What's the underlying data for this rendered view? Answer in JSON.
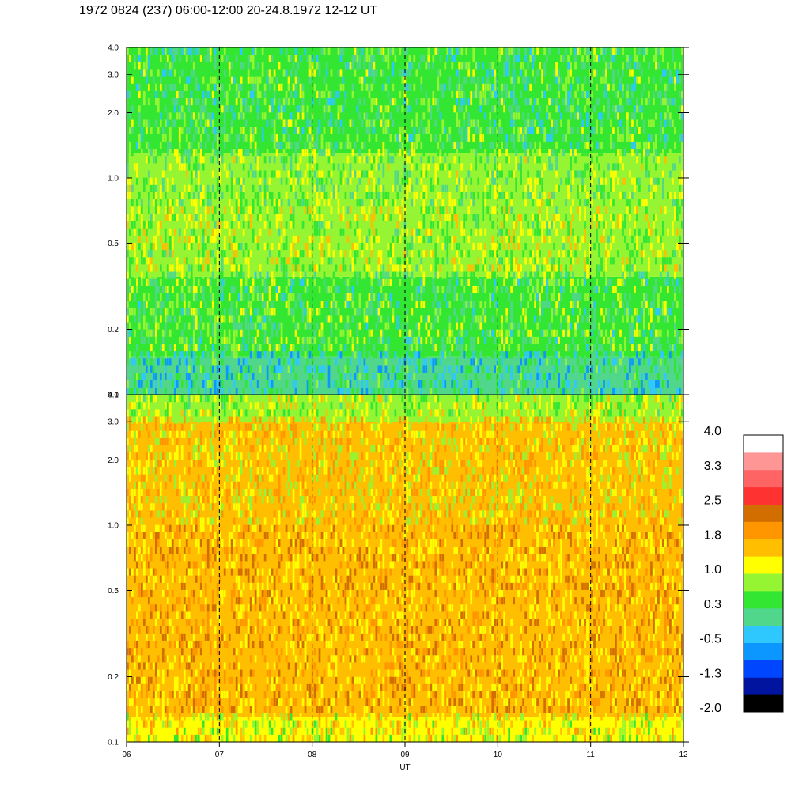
{
  "title": "1972 0824 (237) 06:00-12:00 20-24.8.1972  12-12 UT",
  "chart_data": {
    "type": "heatmap",
    "xlabel": "UT",
    "x_ticks": [
      "06",
      "07",
      "08",
      "09",
      "10",
      "11",
      "12"
    ],
    "x_range": [
      6,
      12
    ],
    "vertical_dashed_lines_at": [
      7,
      8,
      9,
      10,
      11
    ],
    "panels": [
      {
        "name": "",
        "y_scale": "log",
        "y_range": [
          0.1,
          4.0
        ],
        "y_ticks": [
          0.1,
          0.2,
          0.5,
          1.0,
          2.0,
          3.0,
          4.0
        ],
        "y_tick_labels": [
          "0.1",
          "0.2",
          "0.5",
          "1.0",
          "2.0",
          "3.0",
          "4.0"
        ],
        "dominant_level_description_by_band": [
          {
            "y_range": [
              0.1,
              0.15
            ],
            "level": 0.0
          },
          {
            "y_range": [
              0.15,
              0.35
            ],
            "level": 0.5
          },
          {
            "y_range": [
              0.35,
              0.7
            ],
            "level": 0.9
          },
          {
            "y_range": [
              0.7,
              1.3
            ],
            "level": 0.7
          },
          {
            "y_range": [
              1.3,
              4.0
            ],
            "level": 0.4
          }
        ]
      },
      {
        "name": "",
        "y_scale": "log",
        "y_range": [
          0.1,
          4.0
        ],
        "y_ticks": [
          0.1,
          0.2,
          0.5,
          1.0,
          2.0,
          3.0,
          4.0
        ],
        "y_tick_labels": [
          "0.1",
          "0.2",
          "0.5",
          "1.0",
          "2.0",
          "3.0",
          "4.0"
        ],
        "dominant_level_description_by_band": [
          {
            "y_range": [
              0.1,
              0.13
            ],
            "level": 1.2
          },
          {
            "y_range": [
              0.13,
              1.0
            ],
            "level": 1.7
          },
          {
            "y_range": [
              1.0,
              3.0
            ],
            "level": 1.4
          },
          {
            "y_range": [
              3.0,
              4.0
            ],
            "level": 0.9
          }
        ]
      }
    ],
    "colorbar": {
      "labels": [
        "4.0",
        "3.3",
        "2.5",
        "1.8",
        "1.0",
        "0.3",
        "-0.5",
        "-1.3",
        "-2.0"
      ],
      "range": [
        -2.0,
        4.0
      ],
      "colors_bottom_to_top": [
        "#000000",
        "#0014a0",
        "#0046ff",
        "#0c96ff",
        "#2ec8ff",
        "#50d78c",
        "#32e632",
        "#96f532",
        "#ffff00",
        "#ffbe00",
        "#ff9600",
        "#d26e00",
        "#ff3232",
        "#ff6464",
        "#ff9696",
        "#ffffff"
      ]
    }
  }
}
